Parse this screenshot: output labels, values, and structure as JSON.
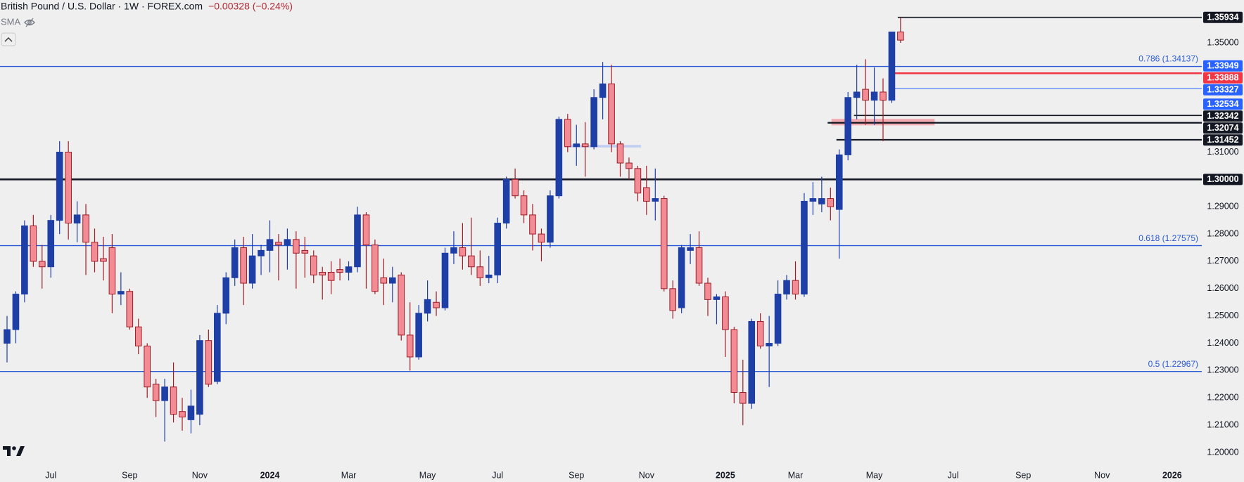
{
  "chart_data": {
    "type": "candlestick",
    "title": "British Pound / U.S. Dollar · 1W · FOREX.com",
    "change": "−0.00328 (−0.24%)",
    "indicator": "SMA",
    "up_color": "#1e3fa6",
    "down_color": "#f28b94",
    "down_border": "#9e1c26",
    "ylim": [
      1.1946,
      1.3657
    ],
    "yticks": [
      {
        "value": 1.35,
        "label": "1.35000"
      },
      {
        "value": 1.31,
        "label": "1.31000"
      },
      {
        "value": 1.29,
        "label": "1.29000"
      },
      {
        "value": 1.28,
        "label": "1.28000"
      },
      {
        "value": 1.27,
        "label": "1.27000"
      },
      {
        "value": 1.26,
        "label": "1.26000"
      },
      {
        "value": 1.25,
        "label": "1.25000"
      },
      {
        "value": 1.24,
        "label": "1.24000"
      },
      {
        "value": 1.23,
        "label": "1.23000"
      },
      {
        "value": 1.22,
        "label": "1.22000"
      },
      {
        "value": 1.21,
        "label": "1.21000"
      },
      {
        "value": 1.2,
        "label": "1.20000"
      }
    ],
    "categories": [
      null,
      null,
      null,
      null,
      null,
      "Jul",
      null,
      null,
      null,
      null,
      null,
      null,
      null,
      null,
      "Sep",
      null,
      null,
      null,
      null,
      null,
      null,
      null,
      "Nov",
      null,
      null,
      null,
      null,
      null,
      null,
      null,
      "2024",
      null,
      null,
      null,
      null,
      null,
      null,
      null,
      null,
      "Mar",
      null,
      null,
      null,
      null,
      null,
      null,
      null,
      null,
      "May",
      null,
      null,
      null,
      null,
      null,
      null,
      null,
      "Jul",
      null,
      null,
      null,
      null,
      null,
      null,
      null,
      null,
      "Sep",
      null,
      null,
      null,
      null,
      null,
      null,
      null,
      "Nov",
      null,
      null,
      null,
      null,
      null,
      null,
      null,
      null,
      "2025",
      null,
      null,
      null,
      null,
      null,
      null,
      null,
      "Mar",
      null,
      null,
      null,
      null,
      null,
      null,
      null,
      null,
      "May",
      null,
      null,
      null,
      null,
      null,
      null,
      null,
      null,
      "Jul",
      null,
      null,
      null,
      null,
      null,
      null,
      null,
      "Sep",
      null,
      null,
      null,
      null,
      null,
      null,
      null,
      null,
      "Nov",
      null,
      null,
      null,
      null,
      null,
      null,
      null,
      "2026",
      null,
      null
    ],
    "open": [
      1.24,
      1.245,
      1.258,
      1.283,
      1.27,
      1.268,
      1.285,
      1.31,
      1.284,
      1.287,
      1.277,
      1.271,
      1.275,
      1.258,
      1.259,
      1.246,
      1.239,
      1.225,
      1.219,
      1.224,
      1.215,
      1.212,
      1.214,
      1.241,
      1.226,
      1.251,
      1.264,
      1.275,
      1.262,
      1.272,
      1.274,
      1.277,
      1.276,
      1.278,
      1.274,
      1.272,
      1.266,
      1.266,
      1.267,
      1.266,
      1.268,
      1.287,
      1.276,
      1.264,
      1.262,
      1.265,
      1.243,
      1.235,
      1.251,
      1.255,
      1.253,
      1.273,
      1.275,
      1.272,
      1.268,
      1.264,
      1.265,
      1.284,
      1.3,
      1.294,
      1.287,
      1.28,
      1.277,
      1.294,
      1.322,
      1.312,
      1.313,
      1.312,
      1.33,
      1.335,
      1.313,
      1.306,
      1.304,
      1.297,
      1.292,
      1.293,
      1.26,
      1.253,
      1.274,
      1.275,
      1.262,
      1.256,
      1.257,
      1.245,
      1.222,
      1.218,
      1.248,
      1.239,
      1.24,
      1.258,
      1.263,
      1.258,
      1.292,
      1.291,
      1.293,
      1.289,
      1.309,
      1.33,
      1.333,
      1.329,
      1.332,
      1.329,
      1.354,
      null,
      null,
      null,
      null,
      null,
      null,
      null,
      null,
      null,
      null,
      null,
      null,
      null,
      null,
      null,
      null,
      null,
      null,
      null,
      null,
      null,
      null,
      null,
      null,
      null,
      null,
      null,
      null,
      null,
      null,
      null,
      null,
      null
    ],
    "high": [
      1.25,
      1.259,
      1.285,
      1.287,
      1.276,
      1.287,
      1.314,
      1.314,
      1.292,
      1.291,
      1.282,
      1.279,
      1.28,
      1.266,
      1.26,
      1.249,
      1.24,
      1.227,
      1.227,
      1.233,
      1.22,
      1.223,
      1.243,
      1.245,
      1.254,
      1.266,
      1.278,
      1.279,
      1.28,
      1.276,
      1.285,
      1.28,
      1.282,
      1.281,
      1.279,
      1.274,
      1.268,
      1.27,
      1.271,
      1.27,
      1.29,
      1.288,
      1.278,
      1.271,
      1.268,
      1.266,
      1.255,
      1.254,
      1.263,
      1.259,
      1.275,
      1.281,
      1.284,
      1.286,
      1.274,
      1.272,
      1.286,
      1.301,
      1.304,
      1.296,
      1.291,
      1.282,
      1.296,
      1.323,
      1.324,
      1.32,
      1.321,
      1.333,
      1.343,
      1.342,
      1.314,
      1.308,
      1.305,
      1.305,
      1.304,
      1.294,
      1.263,
      1.276,
      1.28,
      1.281,
      1.264,
      1.258,
      1.259,
      1.246,
      1.234,
      1.249,
      1.251,
      1.25,
      1.263,
      1.265,
      1.27,
      1.295,
      1.299,
      1.301,
      1.297,
      1.311,
      1.332,
      1.342,
      1.344,
      1.341,
      1.337,
      1.354,
      1.35934,
      null,
      null,
      null,
      null,
      null,
      null,
      null,
      null,
      null,
      null,
      null,
      null,
      null,
      null,
      null,
      null,
      null,
      null,
      null,
      null,
      null,
      null,
      null,
      null,
      null,
      null,
      null,
      null,
      null,
      null,
      null,
      null,
      null
    ],
    "low": [
      1.233,
      1.24,
      1.255,
      1.268,
      1.26,
      1.264,
      1.28,
      1.278,
      1.277,
      1.265,
      1.266,
      1.263,
      1.251,
      1.254,
      1.245,
      1.236,
      1.22,
      1.213,
      1.204,
      1.211,
      1.208,
      1.207,
      1.21,
      1.224,
      1.225,
      1.247,
      1.261,
      1.254,
      1.26,
      1.265,
      1.266,
      1.263,
      1.267,
      1.26,
      1.264,
      1.262,
      1.256,
      1.258,
      1.263,
      1.263,
      1.266,
      1.26,
      1.258,
      1.254,
      1.255,
      1.241,
      1.23,
      1.234,
      1.248,
      1.25,
      1.252,
      1.269,
      1.267,
      1.265,
      1.261,
      1.262,
      1.262,
      1.282,
      1.293,
      1.284,
      1.274,
      1.27,
      1.275,
      1.293,
      1.31,
      1.305,
      1.301,
      1.311,
      1.322,
      1.31,
      1.301,
      1.3,
      1.292,
      1.287,
      1.285,
      1.259,
      1.249,
      1.251,
      1.269,
      1.261,
      1.25,
      1.247,
      1.235,
      1.218,
      1.21,
      1.216,
      1.238,
      1.224,
      1.239,
      1.256,
      1.256,
      1.257,
      1.287,
      1.288,
      1.285,
      1.271,
      1.307,
      1.322,
      1.32,
      1.32,
      1.314,
      1.328,
      1.35,
      null,
      null,
      null,
      null,
      null,
      null,
      null,
      null,
      null,
      null,
      null,
      null,
      null,
      null,
      null,
      null,
      null,
      null,
      null,
      null,
      null,
      null,
      null,
      null,
      null,
      null,
      null,
      null,
      null,
      null,
      null,
      null,
      null
    ],
    "close": [
      1.245,
      1.258,
      1.283,
      1.27,
      1.268,
      1.285,
      1.31,
      1.284,
      1.287,
      1.277,
      1.27,
      1.27,
      1.258,
      1.259,
      1.246,
      1.239,
      1.224,
      1.219,
      1.224,
      1.214,
      1.213,
      1.217,
      1.241,
      1.225,
      1.251,
      1.264,
      1.275,
      1.262,
      1.272,
      1.274,
      1.278,
      1.276,
      1.278,
      1.273,
      1.273,
      1.265,
      1.265,
      1.263,
      1.266,
      1.268,
      1.287,
      1.276,
      1.259,
      1.262,
      1.264,
      1.243,
      1.235,
      1.251,
      1.256,
      1.253,
      1.273,
      1.275,
      1.272,
      1.268,
      1.264,
      1.265,
      1.284,
      1.3,
      1.294,
      1.287,
      1.28,
      1.277,
      1.294,
      1.322,
      1.312,
      1.313,
      1.312,
      1.33,
      1.335,
      1.313,
      1.306,
      1.304,
      1.295,
      1.292,
      1.293,
      1.26,
      1.252,
      1.275,
      1.275,
      1.262,
      1.256,
      1.257,
      1.245,
      1.222,
      1.218,
      1.248,
      1.239,
      1.24,
      1.258,
      1.263,
      1.258,
      1.292,
      1.293,
      1.293,
      1.29,
      1.309,
      1.33,
      1.332,
      1.329,
      1.332,
      1.329,
      1.354,
      1.351,
      null,
      null,
      null,
      null,
      null,
      null,
      null,
      null,
      null,
      null,
      null,
      null,
      null,
      null,
      null,
      null,
      null,
      null,
      null,
      null,
      null,
      null,
      null,
      null,
      null,
      null,
      null,
      null,
      null,
      null,
      null,
      null,
      null
    ],
    "fib_color": "#2a5bd7",
    "fib_levels": [
      {
        "value": 1.34137,
        "label": "0.786 (1.34137)"
      },
      {
        "value": 1.27575,
        "label": "0.618 (1.27575)"
      },
      {
        "value": 1.22967,
        "label": "0.5 (1.22967)"
      }
    ],
    "zones": [
      {
        "low": 1.3198,
        "high": 1.3222,
        "color": "#f4a0a8"
      },
      {
        "low": 1.3117,
        "high": 1.3126,
        "color": "#b8c8f2"
      }
    ],
    "levels": [
      {
        "value": 1.35934,
        "label": "1.35934",
        "color": "#131722"
      },
      {
        "value": 1.33949,
        "label": "1.33949",
        "color": "#2962ff"
      },
      {
        "value": 1.33888,
        "label": "1.33888",
        "color": "#f23645"
      },
      {
        "value": 1.33327,
        "label": "1.33327",
        "color": "#2962ff"
      },
      {
        "value": 1.32534,
        "label": "1.32534",
        "color": "#2962ff"
      },
      {
        "value": 1.32342,
        "label": "1.32342",
        "color": "#131722"
      },
      {
        "value": 1.32074,
        "label": "1.32074",
        "color": "#131722"
      },
      {
        "value": 1.31452,
        "label": "1.31452",
        "color": "#131722"
      },
      {
        "value": 1.3,
        "label": "1.30000",
        "color": "#131722"
      }
    ]
  }
}
